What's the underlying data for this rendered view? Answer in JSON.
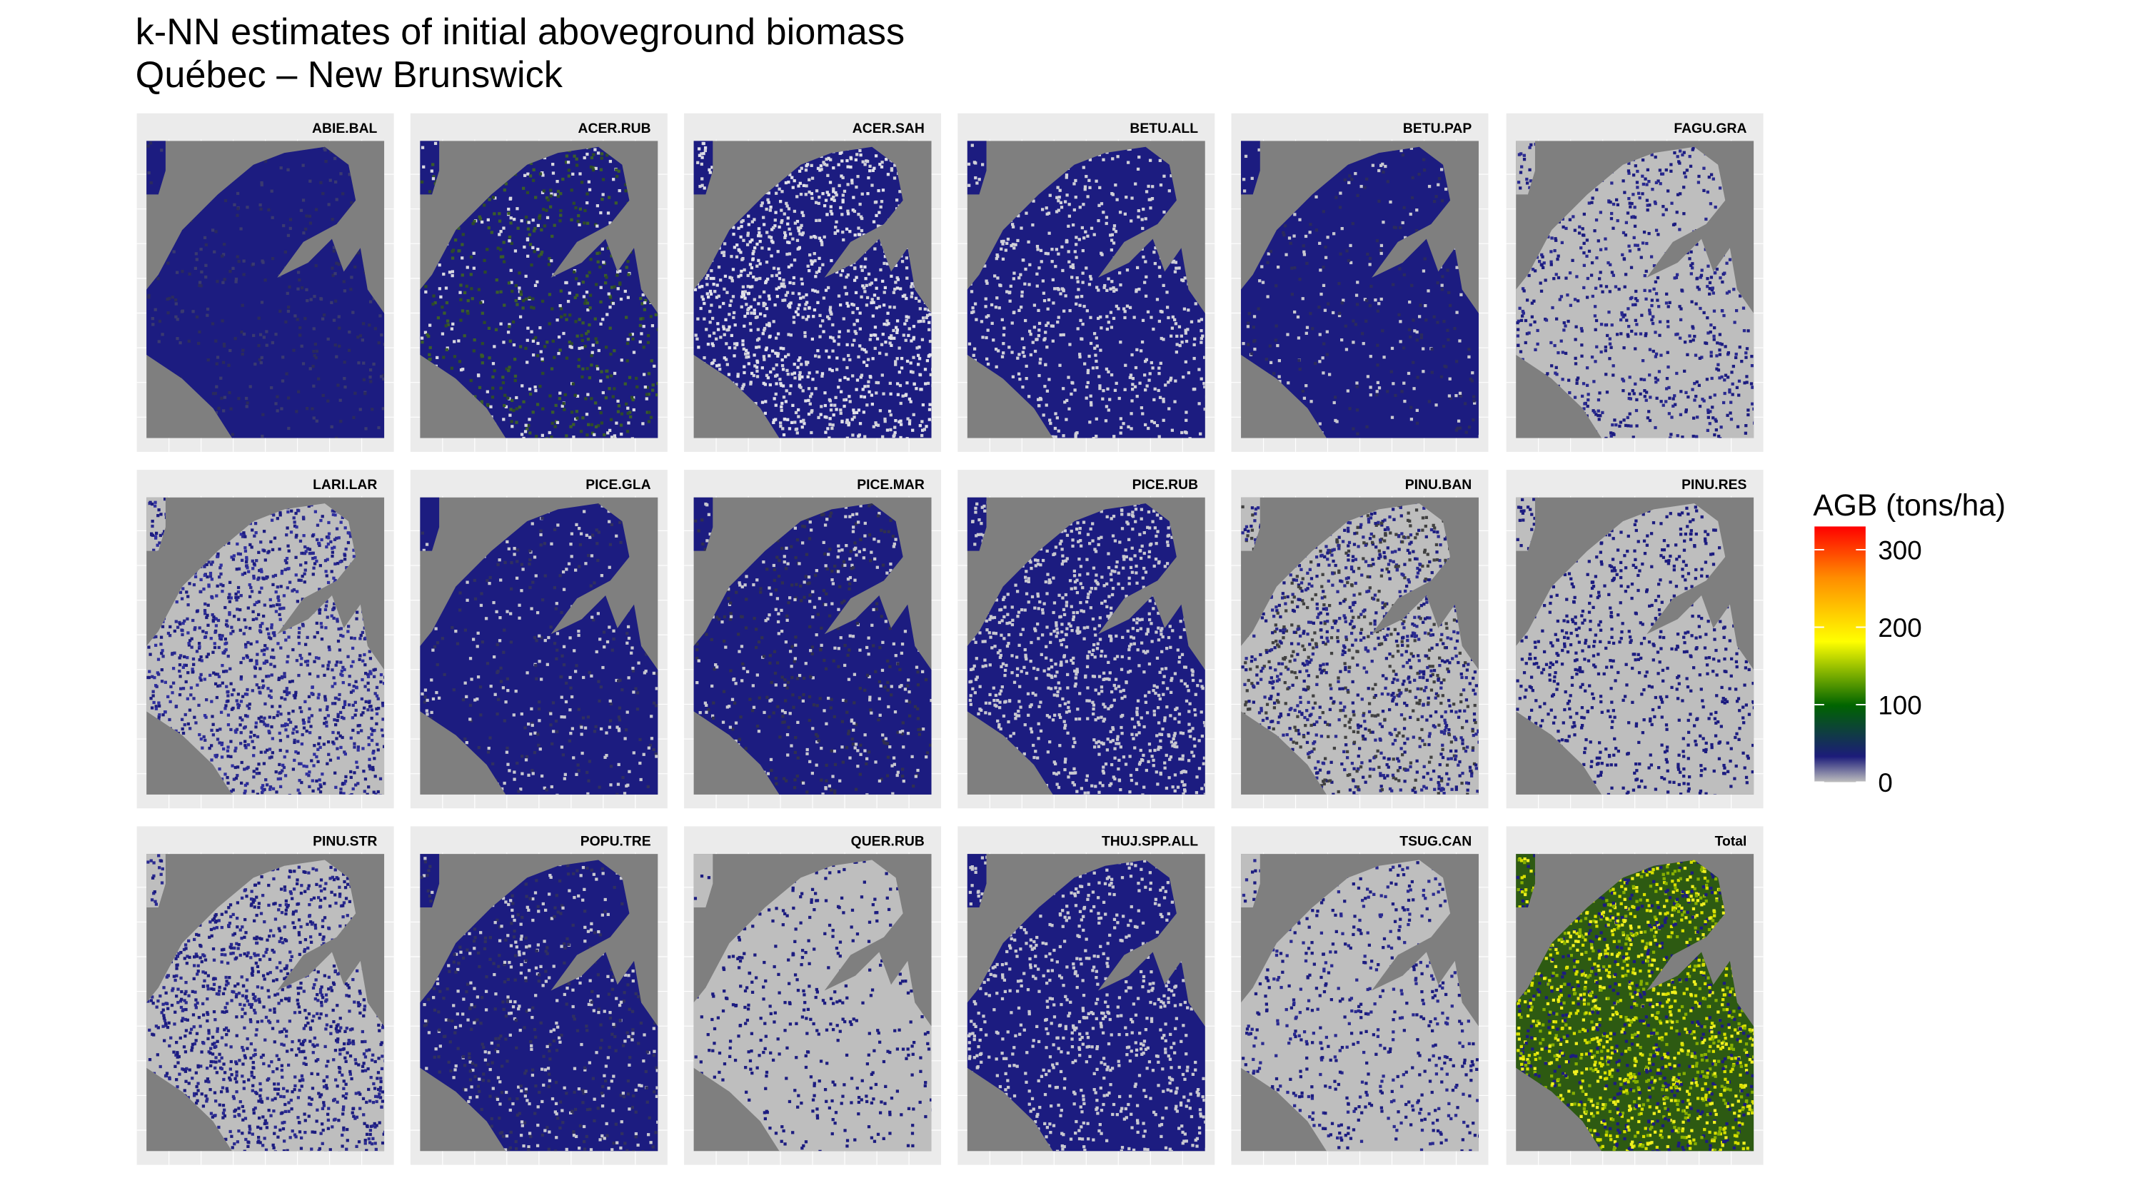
{
  "title": [
    "k-NN estimates of initial aboveground biomass",
    "Québec – New Brunswick"
  ],
  "panels": [
    "ABIE.BAL",
    "ACER.RUB",
    "ACER.SAH",
    "BETU.ALL",
    "BETU.PAP",
    "FAGU.GRA",
    "LARI.LAR",
    "PICE.GLA",
    "PICE.MAR",
    "PICE.RUB",
    "PINU.BAN",
    "PINU.RES",
    "PINU.STR",
    "POPU.TRE",
    "QUER.RUB",
    "THUJ.SPP.ALL",
    "TSUG.CAN",
    "Total"
  ],
  "legend": {
    "title": "AGB (tons/ha)",
    "lim": [
      0,
      330
    ],
    "ticks": [
      0,
      100,
      200,
      300
    ],
    "colors": [
      "#bebebe",
      "#1c1c7a",
      "#006400",
      "#ffff00",
      "#ff8c00",
      "#ff0000"
    ]
  }
}
